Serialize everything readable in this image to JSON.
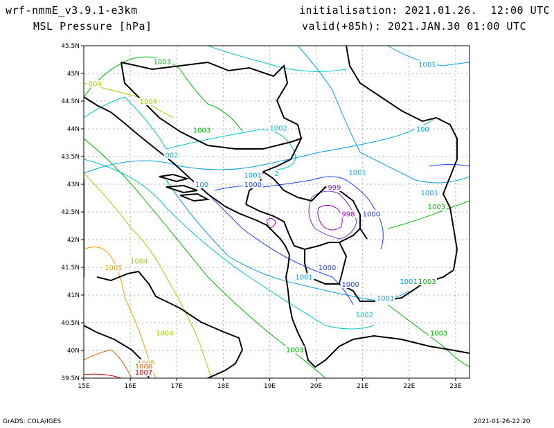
{
  "header": {
    "model": "wrf-nmmE_v3.9.1-e3km",
    "variable": "MSL Pressure [hPa]",
    "init": "initialisation: 2021.01.26.  12:00 UTC",
    "valid": "valid(+85h): 2021.JAN.30 01:00 UTC"
  },
  "footer": {
    "credit": "GrADS: COLA/IGES",
    "timestamp": "2021-01-26-22:20"
  },
  "map": {
    "lon_ticks": [
      {
        "value": 15,
        "label": "15E"
      },
      {
        "value": 16,
        "label": "16E"
      },
      {
        "value": 17,
        "label": "17E"
      },
      {
        "value": 18,
        "label": "18E"
      },
      {
        "value": 19,
        "label": "19E"
      },
      {
        "value": 20,
        "label": "20E"
      },
      {
        "value": 21,
        "label": "21E"
      },
      {
        "value": 22,
        "label": "22E"
      },
      {
        "value": 23,
        "label": "23E"
      }
    ],
    "lat_ticks": [
      {
        "value": 39.5,
        "label": "39.5N"
      },
      {
        "value": 40,
        "label": "40N"
      },
      {
        "value": 40.5,
        "label": "40.5N"
      },
      {
        "value": 41,
        "label": "41N"
      },
      {
        "value": 41.5,
        "label": "41.5N"
      },
      {
        "value": 42,
        "label": "42N"
      },
      {
        "value": 42.5,
        "label": "42.5N"
      },
      {
        "value": 43,
        "label": "43N"
      },
      {
        "value": 43.5,
        "label": "43.5N"
      },
      {
        "value": 44,
        "label": "44N"
      },
      {
        "value": 44.5,
        "label": "44.5N"
      },
      {
        "value": 45,
        "label": "45N"
      },
      {
        "value": 45.5,
        "label": "45.5N"
      }
    ],
    "lon_range": [
      15,
      23.3
    ],
    "lat_range": [
      39.5,
      45.5
    ],
    "gridlines": true,
    "contour_colors": {
      "998": "#a000c8",
      "999": "#7a28c0",
      "1000": "#1e3cff",
      "1001": "#00a0e0",
      "1002": "#00c8c8",
      "1003": "#00b400",
      "1004": "#96d200",
      "1005": "#e6a000",
      "1006": "#d25a00",
      "1007": "#c80000"
    },
    "contour_labels": [
      {
        "text": "1003",
        "lon": 16.5,
        "lat": 45.17,
        "level": "1003"
      },
      {
        "text": "004",
        "lon": 15.1,
        "lat": 44.77,
        "level": "1004"
      },
      {
        "text": "1004",
        "lon": 16.2,
        "lat": 44.45,
        "level": "1004"
      },
      {
        "text": "1003",
        "lon": 17.35,
        "lat": 43.93,
        "level": "1003"
      },
      {
        "text": "1002",
        "lon": 19.0,
        "lat": 43.97,
        "level": "1002"
      },
      {
        "text": "1001",
        "lon": 22.2,
        "lat": 45.12,
        "level": "1001"
      },
      {
        "text": "100",
        "lon": 22.15,
        "lat": 43.95,
        "level": "1001"
      },
      {
        "text": "1001",
        "lon": 20.7,
        "lat": 43.17,
        "level": "1001"
      },
      {
        "text": "1001",
        "lon": 18.45,
        "lat": 43.12,
        "level": "1001"
      },
      {
        "text": "002",
        "lon": 16.75,
        "lat": 43.48,
        "level": "1002"
      },
      {
        "text": "2",
        "lon": 19.1,
        "lat": 43.15,
        "level": "1002"
      },
      {
        "text": "1001",
        "lon": 22.25,
        "lat": 42.8,
        "level": "1001"
      },
      {
        "text": "1000",
        "lon": 18.45,
        "lat": 42.95,
        "level": "1000"
      },
      {
        "text": "100",
        "lon": 17.4,
        "lat": 42.95,
        "level": "1001"
      },
      {
        "text": "999",
        "lon": 20.25,
        "lat": 42.9,
        "level": "999"
      },
      {
        "text": "998",
        "lon": 20.55,
        "lat": 42.42,
        "level": "998"
      },
      {
        "text": "1000",
        "lon": 21.0,
        "lat": 42.42,
        "level": "1000"
      },
      {
        "text": "1003",
        "lon": 22.4,
        "lat": 42.55,
        "level": "1003"
      },
      {
        "text": "1004",
        "lon": 16.0,
        "lat": 41.57,
        "level": "1004"
      },
      {
        "text": "1005",
        "lon": 15.45,
        "lat": 41.45,
        "level": "1005"
      },
      {
        "text": "1000",
        "lon": 20.05,
        "lat": 41.45,
        "level": "1000"
      },
      {
        "text": "1001",
        "lon": 19.55,
        "lat": 41.28,
        "level": "1001"
      },
      {
        "text": "1000",
        "lon": 20.55,
        "lat": 41.15,
        "level": "1000"
      },
      {
        "text": "1001",
        "lon": 21.8,
        "lat": 41.2,
        "level": "1001"
      },
      {
        "text": "1003",
        "lon": 22.2,
        "lat": 41.2,
        "level": "1003"
      },
      {
        "text": "1001",
        "lon": 21.3,
        "lat": 40.9,
        "level": "1001"
      },
      {
        "text": "1002",
        "lon": 20.85,
        "lat": 40.6,
        "level": "1002"
      },
      {
        "text": "1004",
        "lon": 16.55,
        "lat": 40.27,
        "level": "1004"
      },
      {
        "text": "1003",
        "lon": 19.35,
        "lat": 39.97,
        "level": "1003"
      },
      {
        "text": "1003",
        "lon": 22.45,
        "lat": 40.27,
        "level": "1003"
      },
      {
        "text": "1005",
        "lon": 16.15,
        "lat": 39.73,
        "level": "1005"
      },
      {
        "text": "1006",
        "lon": 16.1,
        "lat": 39.66,
        "level": "1006"
      },
      {
        "text": "1007",
        "lon": 16.1,
        "lat": 39.56,
        "level": "1007"
      }
    ]
  }
}
